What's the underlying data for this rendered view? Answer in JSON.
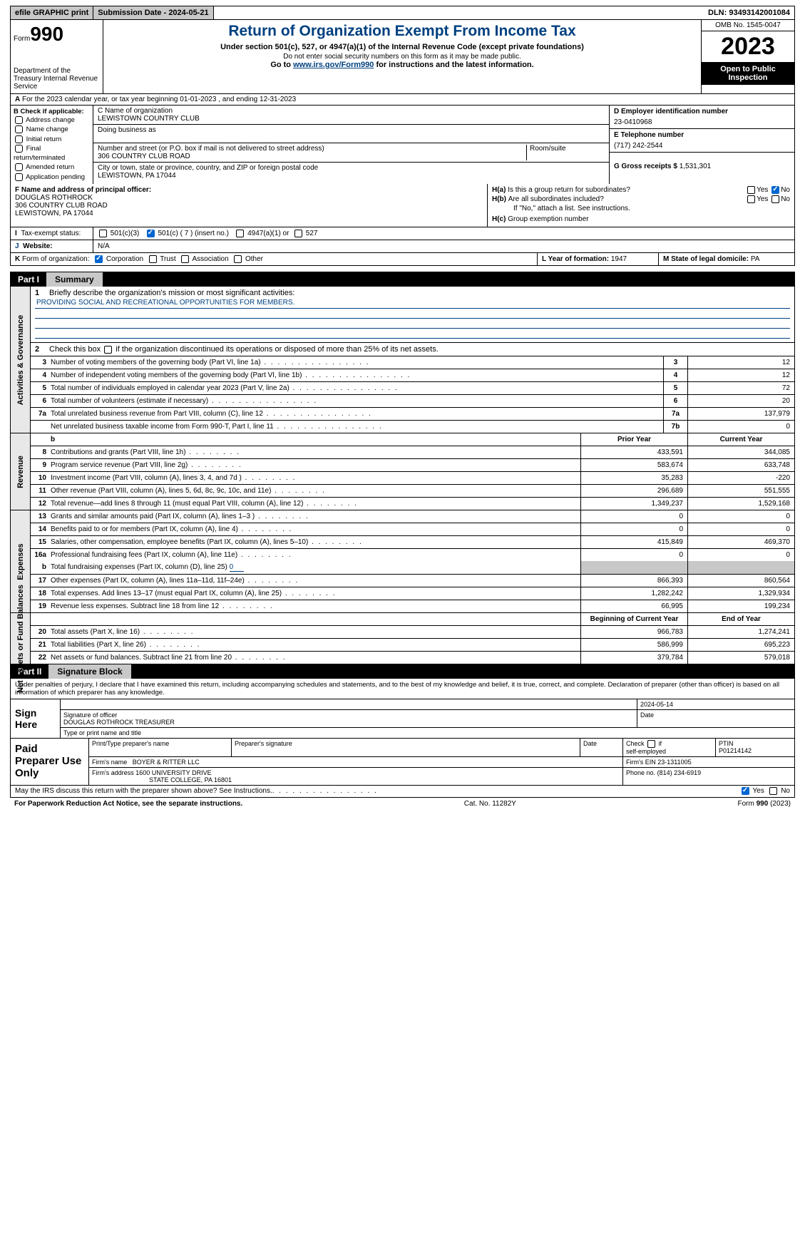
{
  "topbar": {
    "efile": "efile GRAPHIC print",
    "submission": "Submission Date - 2024-05-21",
    "dln": "DLN: 93493142001084"
  },
  "header": {
    "form_prefix": "Form",
    "form_no": "990",
    "dept": "Department of the Treasury Internal Revenue Service",
    "title": "Return of Organization Exempt From Income Tax",
    "subtitle": "Under section 501(c), 527, or 4947(a)(1) of the Internal Revenue Code (except private foundations)",
    "ssn_note": "Do not enter social security numbers on this form as it may be made public.",
    "goto_pre": "Go to ",
    "goto_link": "www.irs.gov/Form990",
    "goto_post": " for instructions and the latest information.",
    "omb": "OMB No. 1545-0047",
    "year": "2023",
    "inspect": "Open to Public Inspection"
  },
  "rowA": {
    "text": "For the 2023 calendar year, or tax year beginning 01-01-2023   , and ending 12-31-2023",
    "prefix": "A"
  },
  "boxB": {
    "label": "B Check if applicable:",
    "items": [
      "Address change",
      "Name change",
      "Initial return",
      "Final return/terminated",
      "Amended return",
      "Application pending"
    ]
  },
  "boxC": {
    "name_label": "C Name of organization",
    "name": "LEWISTOWN COUNTRY CLUB",
    "dba_label": "Doing business as",
    "street_label": "Number and street (or P.O. box if mail is not delivered to street address)",
    "street": "306 COUNTRY CLUB ROAD",
    "room_label": "Room/suite",
    "city_label": "City or town, state or province, country, and ZIP or foreign postal code",
    "city": "LEWISTOWN, PA  17044"
  },
  "boxD": {
    "ein_label": "D Employer identification number",
    "ein": "23-0410968",
    "phone_label": "E Telephone number",
    "phone": "(717) 242-2544",
    "gross_label": "G Gross receipts $ ",
    "gross": "1,531,301"
  },
  "boxF": {
    "label": "F  Name and address of principal officer:",
    "name": "DOUGLAS ROTHROCK",
    "addr1": "306 COUNTRY CLUB ROAD",
    "addr2": "LEWISTOWN, PA  17044"
  },
  "boxH": {
    "a_label": "Is this a group return for subordinates?",
    "a_prefix": "H(a)",
    "b_label": "Are all subordinates included?",
    "b_prefix": "H(b)",
    "b_note": "If \"No,\" attach a list. See instructions.",
    "c_label": "Group exemption number",
    "c_prefix": "H(c)"
  },
  "rowI": {
    "label": "Tax-exempt status:",
    "prefix": "I",
    "opts": [
      "501(c)(3)",
      "501(c) ( 7 ) (insert no.)",
      "4947(a)(1) or",
      "527"
    ]
  },
  "rowJ": {
    "label": "Website:",
    "prefix": "J",
    "value": "N/A"
  },
  "rowK": {
    "label": "Form of organization:",
    "prefix": "K",
    "opts": [
      "Corporation",
      "Trust",
      "Association",
      "Other"
    ]
  },
  "rowL": {
    "label": "L Year of formation: ",
    "value": "1947"
  },
  "rowM": {
    "label": "M State of legal domicile: ",
    "value": "PA"
  },
  "part1": {
    "num": "Part I",
    "title": "Summary"
  },
  "mission": {
    "label": "Briefly describe the organization's mission or most significant activities:",
    "text": "PROVIDING SOCIAL AND RECREATIONAL OPPORTUNITIES FOR MEMBERS."
  },
  "line2": "Check this box          if the organization discontinued its operations or disposed of more than 25% of its net assets.",
  "gov_rows": [
    {
      "n": "3",
      "t": "Number of voting members of the governing body (Part VI, line 1a)",
      "box": "3",
      "v": "12"
    },
    {
      "n": "4",
      "t": "Number of independent voting members of the governing body (Part VI, line 1b)",
      "box": "4",
      "v": "12"
    },
    {
      "n": "5",
      "t": "Total number of individuals employed in calendar year 2023 (Part V, line 2a)",
      "box": "5",
      "v": "72"
    },
    {
      "n": "6",
      "t": "Total number of volunteers (estimate if necessary)",
      "box": "6",
      "v": "20"
    },
    {
      "n": "7a",
      "t": "Total unrelated business revenue from Part VIII, column (C), line 12",
      "box": "7a",
      "v": "137,979"
    },
    {
      "n": "",
      "t": "Net unrelated business taxable income from Form 990-T, Part I, line 11",
      "box": "7b",
      "v": "0"
    }
  ],
  "rev_hdr": {
    "prior": "Prior Year",
    "current": "Current Year"
  },
  "rev_rows": [
    {
      "n": "8",
      "t": "Contributions and grants (Part VIII, line 1h)",
      "p": "433,591",
      "c": "344,085"
    },
    {
      "n": "9",
      "t": "Program service revenue (Part VIII, line 2g)",
      "p": "583,674",
      "c": "633,748"
    },
    {
      "n": "10",
      "t": "Investment income (Part VIII, column (A), lines 3, 4, and 7d )",
      "p": "35,283",
      "c": "-220"
    },
    {
      "n": "11",
      "t": "Other revenue (Part VIII, column (A), lines 5, 6d, 8c, 9c, 10c, and 11e)",
      "p": "296,689",
      "c": "551,555"
    },
    {
      "n": "12",
      "t": "Total revenue—add lines 8 through 11 (must equal Part VIII, column (A), line 12)",
      "p": "1,349,237",
      "c": "1,529,168"
    }
  ],
  "exp_rows": [
    {
      "n": "13",
      "t": "Grants and similar amounts paid (Part IX, column (A), lines 1–3 )",
      "p": "0",
      "c": "0"
    },
    {
      "n": "14",
      "t": "Benefits paid to or for members (Part IX, column (A), line 4)",
      "p": "0",
      "c": "0"
    },
    {
      "n": "15",
      "t": "Salaries, other compensation, employee benefits (Part IX, column (A), lines 5–10)",
      "p": "415,849",
      "c": "469,370"
    },
    {
      "n": "16a",
      "t": "Professional fundraising fees (Part IX, column (A), line 11e)",
      "p": "0",
      "c": "0"
    }
  ],
  "exp_b": {
    "n": "b",
    "t": "Total fundraising expenses (Part IX, column (D), line 25) ",
    "v": "0"
  },
  "exp_rows2": [
    {
      "n": "17",
      "t": "Other expenses (Part IX, column (A), lines 11a–11d, 11f–24e)",
      "p": "866,393",
      "c": "860,564"
    },
    {
      "n": "18",
      "t": "Total expenses. Add lines 13–17 (must equal Part IX, column (A), line 25)",
      "p": "1,282,242",
      "c": "1,329,934"
    },
    {
      "n": "19",
      "t": "Revenue less expenses. Subtract line 18 from line 12",
      "p": "66,995",
      "c": "199,234"
    }
  ],
  "na_hdr": {
    "begin": "Beginning of Current Year",
    "end": "End of Year"
  },
  "na_rows": [
    {
      "n": "20",
      "t": "Total assets (Part X, line 16)",
      "p": "966,783",
      "c": "1,274,241"
    },
    {
      "n": "21",
      "t": "Total liabilities (Part X, line 26)",
      "p": "586,999",
      "c": "695,223"
    },
    {
      "n": "22",
      "t": "Net assets or fund balances. Subtract line 21 from line 20",
      "p": "379,784",
      "c": "579,018"
    }
  ],
  "vlabels": {
    "gov": "Activities & Governance",
    "rev": "Revenue",
    "exp": "Expenses",
    "na": "Net Assets or Fund Balances"
  },
  "part2": {
    "num": "Part II",
    "title": "Signature Block"
  },
  "penalty": "Under penalties of perjury, I declare that I have examined this return, including accompanying schedules and statements, and to the best of my knowledge and belief, it is true, correct, and complete. Declaration of preparer (other than officer) is based on all information of which preparer has any knowledge.",
  "sign": {
    "here": "Sign Here",
    "date": "2024-05-14",
    "sig_label": "Signature of officer",
    "officer": "DOUGLAS ROTHROCK  TREASURER",
    "type_label": "Type or print name and title",
    "date_label": "Date"
  },
  "prep": {
    "label": "Paid Preparer Use Only",
    "pname_label": "Print/Type preparer's name",
    "psig_label": "Preparer's signature",
    "pdate_label": "Date",
    "selfemp_label": "self-employed",
    "check_label": "Check          if",
    "ptin_label": "PTIN",
    "ptin": "P01214142",
    "firm_label": "Firm's name",
    "firm": "BOYER & RITTER LLC",
    "fein_label": "Firm's EIN",
    "fein": "23-1311005",
    "faddr_label": "Firm's address",
    "faddr1": "1600 UNIVERSITY DRIVE",
    "faddr2": "STATE COLLEGE, PA  16801",
    "phone_label": "Phone no.",
    "phone": "(814) 234-6919"
  },
  "discuss": "May the IRS discuss this return with the preparer shown above? See Instructions.",
  "footer": {
    "paperwork": "For Paperwork Reduction Act Notice, see the separate instructions.",
    "cat": "Cat. No. 11282Y",
    "form": "Form 990 (2023)"
  },
  "yes": "Yes",
  "no": "No"
}
